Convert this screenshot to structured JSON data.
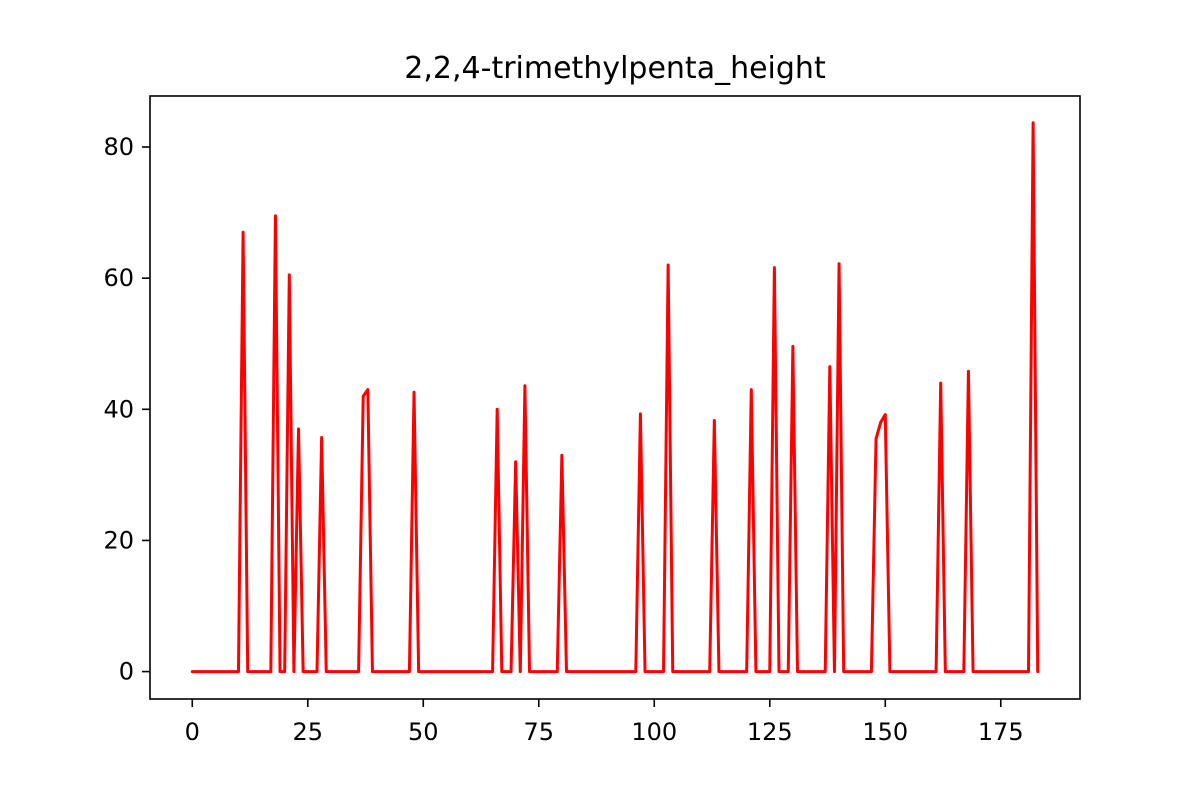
{
  "chart_data": {
    "type": "line",
    "title": "2,2,4-trimethylpenta_height",
    "xlabel": "",
    "ylabel": "",
    "xlim": [
      -9.15,
      192.15
    ],
    "ylim": [
      -4.18,
      87.78
    ],
    "xticks": [
      0,
      25,
      50,
      75,
      100,
      125,
      150,
      175
    ],
    "yticks": [
      0,
      20,
      40,
      60,
      80
    ],
    "grid": false,
    "colors": {
      "line": "#ff0000",
      "axes": "#000000",
      "background": "#ffffff"
    },
    "series": [
      {
        "x": [
          0,
          10,
          11,
          12,
          17,
          18,
          19,
          20,
          21,
          22,
          23,
          24,
          27,
          28,
          29,
          36,
          37,
          38,
          39,
          47,
          48,
          49,
          65,
          66,
          67,
          69,
          70,
          71,
          72,
          73,
          79,
          80,
          81,
          96,
          97,
          98,
          102,
          103,
          104,
          112,
          113,
          114,
          120,
          121,
          122,
          125,
          126,
          127,
          129,
          130,
          131,
          137,
          138,
          139,
          140,
          141,
          147,
          148,
          149,
          150,
          151,
          161,
          162,
          163,
          167,
          168,
          169,
          181,
          182,
          183
        ],
        "values": [
          0,
          0,
          67,
          0,
          0,
          69.5,
          0,
          0,
          60.5,
          0,
          37,
          0,
          0,
          35.7,
          0,
          0,
          42,
          43,
          0,
          0,
          42.6,
          0,
          0,
          40,
          0,
          0,
          32,
          0,
          43.6,
          0,
          0,
          33,
          0,
          0,
          39.3,
          0,
          0,
          62,
          0,
          0,
          38.3,
          0,
          0,
          43,
          0,
          0,
          61.6,
          0,
          0,
          49.6,
          0,
          0,
          46.5,
          0,
          62.2,
          0,
          0,
          35.5,
          38,
          39.2,
          0,
          0,
          44,
          0,
          0,
          45.8,
          0,
          0,
          83.7,
          0
        ]
      }
    ]
  }
}
